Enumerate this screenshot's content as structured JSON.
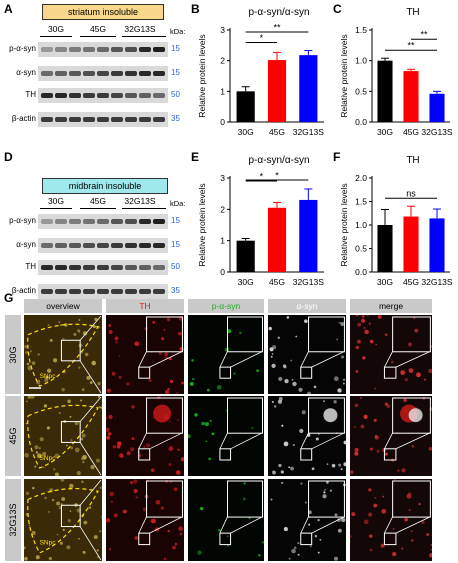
{
  "panels": {
    "A": {
      "letter": "A",
      "tag": "striatum insoluble",
      "groups": [
        "30G",
        "45G",
        "32G13S"
      ],
      "bands": [
        {
          "name": "p-α-syn",
          "kda": "15"
        },
        {
          "name": "α-syn",
          "kda": "15"
        },
        {
          "name": "TH",
          "kda": "50"
        },
        {
          "name": "β-actin",
          "kda": "35"
        }
      ],
      "kda_header": "kDa:"
    },
    "D": {
      "letter": "D",
      "tag": "midbrain insoluble",
      "groups": [
        "30G",
        "45G",
        "32G13S"
      ],
      "bands": [
        {
          "name": "p-α-syn",
          "kda": "15"
        },
        {
          "name": "α-syn",
          "kda": "15"
        },
        {
          "name": "TH",
          "kda": "50"
        },
        {
          "name": "β-actin",
          "kda": "35"
        }
      ],
      "kda_header": "kDa:"
    },
    "G": {
      "letter": "G",
      "columns": [
        {
          "label": "overview",
          "color": "#000000"
        },
        {
          "label": "TH",
          "color": "#e02020"
        },
        {
          "label": "p-α-syn",
          "color": "#22aa22"
        },
        {
          "label": "α-syn",
          "color": "#ffffff"
        },
        {
          "label": "merge",
          "color": "#000000"
        }
      ],
      "rows": [
        "30G",
        "45G",
        "32G13S"
      ],
      "region": "SNpc"
    }
  },
  "chart_data": [
    {
      "panel": "B",
      "type": "bar",
      "title": "p-α-syn/α-syn",
      "ylabel": "Relative protein levels",
      "categories": [
        "30G",
        "45G",
        "32G13S"
      ],
      "values": [
        1.0,
        2.02,
        2.18
      ],
      "errors": [
        0.15,
        0.25,
        0.15
      ],
      "colors": [
        "#000000",
        "#ff0000",
        "#0000ff"
      ],
      "ylim": [
        0,
        3
      ],
      "yticks": [
        0,
        1,
        2,
        3
      ],
      "sig": [
        {
          "from": 0,
          "to": 1,
          "label": "*"
        },
        {
          "from": 0,
          "to": 2,
          "label": "**"
        }
      ]
    },
    {
      "panel": "C",
      "type": "bar",
      "title": "TH",
      "ylabel": "Relative protein levels",
      "categories": [
        "30G",
        "45G",
        "32G13S"
      ],
      "values": [
        1.0,
        0.83,
        0.46
      ],
      "errors": [
        0.04,
        0.03,
        0.04
      ],
      "colors": [
        "#000000",
        "#ff0000",
        "#0000ff"
      ],
      "ylim": [
        0,
        1.5
      ],
      "yticks": [
        0.0,
        0.5,
        1.0,
        1.5
      ],
      "sig": [
        {
          "from": 0,
          "to": 2,
          "label": "**"
        },
        {
          "from": 1,
          "to": 2,
          "label": "**"
        }
      ]
    },
    {
      "panel": "E",
      "type": "bar",
      "title": "p-α-syn/α-syn",
      "ylabel": "Relative protein levels",
      "categories": [
        "30G",
        "45G",
        "32G13S"
      ],
      "values": [
        1.0,
        2.05,
        2.3
      ],
      "errors": [
        0.07,
        0.17,
        0.35
      ],
      "colors": [
        "#000000",
        "#ff0000",
        "#0000ff"
      ],
      "ylim": [
        0,
        3
      ],
      "yticks": [
        0,
        1,
        2,
        3
      ],
      "sig": [
        {
          "from": 0,
          "to": 1,
          "label": "*"
        },
        {
          "from": 0,
          "to": 2,
          "label": "*"
        }
      ]
    },
    {
      "panel": "F",
      "type": "bar",
      "title": "TH",
      "ylabel": "Relative protein levels",
      "categories": [
        "30G",
        "45G",
        "32G13S"
      ],
      "values": [
        1.0,
        1.18,
        1.14
      ],
      "errors": [
        0.33,
        0.22,
        0.2
      ],
      "colors": [
        "#000000",
        "#ff0000",
        "#0000ff"
      ],
      "ylim": [
        0,
        2.0
      ],
      "yticks": [
        0.0,
        0.5,
        1.0,
        1.5,
        2.0
      ],
      "sig": [
        {
          "from": 0,
          "to": 2,
          "label": "ns"
        }
      ]
    }
  ]
}
